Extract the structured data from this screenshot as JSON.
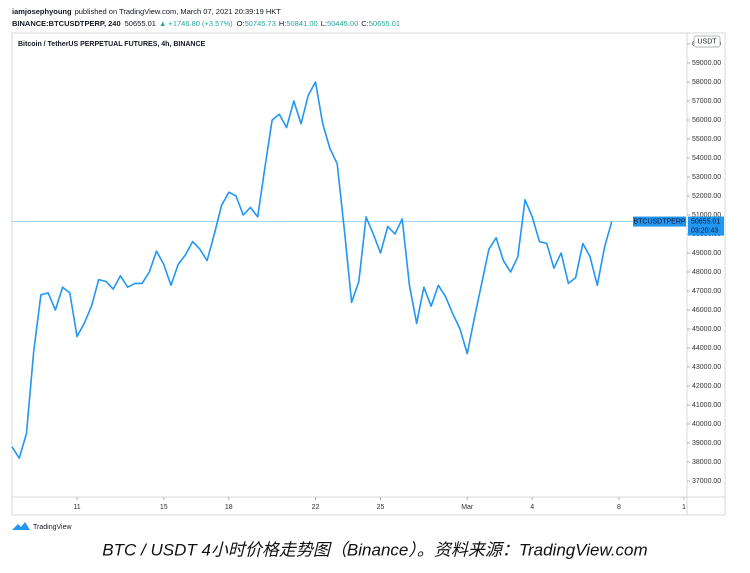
{
  "header": {
    "author": "iamjosephyoung",
    "published": "published on TradingView.com, March 07, 2021 20:39:19 HKT",
    "symbol": "BINANCE:BTCUSDTPERP, 240",
    "price": "50655.01",
    "change": "▲ +1746.80 (+3.57%)",
    "ohlc": [
      {
        "key": "O:",
        "value": "50745.73"
      },
      {
        "key": "H:",
        "value": "50841.00"
      },
      {
        "key": "L:",
        "value": "50445.00"
      },
      {
        "key": "C:",
        "value": "50655.01"
      }
    ]
  },
  "chart_data": {
    "type": "line",
    "title": "Bitcoin / TetherUS PERPETUAL FUTURES, 4h, BINANCE",
    "y_label": "USDT",
    "categories": [
      null,
      null,
      null,
      null,
      null,
      null,
      null,
      null,
      null,
      "11",
      null,
      null,
      null,
      null,
      null,
      null,
      null,
      null,
      null,
      null,
      null,
      "15",
      null,
      null,
      null,
      null,
      null,
      null,
      null,
      null,
      "18",
      null,
      null,
      null,
      null,
      null,
      null,
      null,
      null,
      null,
      null,
      null,
      "22",
      null,
      null,
      null,
      null,
      null,
      null,
      null,
      null,
      "25",
      null,
      null,
      null,
      null,
      null,
      null,
      null,
      null,
      null,
      null,
      null,
      "Mar",
      null,
      null,
      null,
      null,
      null,
      null,
      null,
      null,
      "4",
      null,
      null,
      null,
      null,
      null,
      null,
      null,
      null,
      null,
      null,
      null,
      "8",
      null,
      null,
      null,
      null,
      null,
      null,
      null,
      null,
      "1"
    ],
    "series": [
      {
        "name": "BTCUSDTPERP",
        "color": "#2196f3",
        "values": [
          38800,
          38200,
          39500,
          43800,
          46800,
          46900,
          46000,
          47200,
          46900,
          44600,
          45300,
          46200,
          47600,
          47500,
          47100,
          47800,
          47200,
          47400,
          47400,
          48000,
          49100,
          48400,
          47300,
          48400,
          48900,
          49600,
          49200,
          48600,
          50000,
          51500,
          52200,
          52000,
          51000,
          51400,
          50900,
          53500,
          56000,
          56300,
          55600,
          57000,
          55800,
          57300,
          58000,
          55800,
          54500,
          53700,
          50200,
          46400,
          47500,
          50900,
          50000,
          49000,
          50400,
          50000,
          50800,
          47300,
          45300,
          47200,
          46200,
          47300,
          46700,
          45800,
          45000,
          43700,
          45600,
          47400,
          49200,
          49800,
          48600,
          48000,
          48800,
          51800,
          50900,
          49600,
          49500,
          48200,
          49000,
          47400,
          47700,
          49500,
          48800,
          47300,
          49300,
          50655.01,
          null,
          null,
          null,
          null,
          null,
          null,
          null,
          null,
          null,
          null
        ]
      }
    ],
    "ylim": [
      36158,
      60579
    ],
    "yticks": [
      {
        "value": 37000,
        "label": "37000.00"
      },
      {
        "value": 38000,
        "label": "38000.00"
      },
      {
        "value": 39000,
        "label": "39000.00"
      },
      {
        "value": 40000,
        "label": "40000.00"
      },
      {
        "value": 41000,
        "label": "41000.00"
      },
      {
        "value": 42000,
        "label": "42000.00"
      },
      {
        "value": 43000,
        "label": "43000.00"
      },
      {
        "value": 44000,
        "label": "44000.00"
      },
      {
        "value": 45000,
        "label": "45000.00"
      },
      {
        "value": 46000,
        "label": "46000.00"
      },
      {
        "value": 47000,
        "label": "47000.00"
      },
      {
        "value": 48000,
        "label": "48000.00"
      },
      {
        "value": 49000,
        "label": "49000.00"
      },
      {
        "value": 50000,
        "label": "50000.00"
      },
      {
        "value": 51000,
        "label": "51000.00"
      },
      {
        "value": 52000,
        "label": "52000.00"
      },
      {
        "value": 53000,
        "label": "53000.00"
      },
      {
        "value": 54000,
        "label": "54000.00"
      },
      {
        "value": 55000,
        "label": "55000.00"
      },
      {
        "value": 56000,
        "label": "56000.00"
      },
      {
        "value": 57000,
        "label": "57000.00"
      },
      {
        "value": 58000,
        "label": "58000.00"
      },
      {
        "value": 59000,
        "label": "59000.00"
      },
      {
        "value": 60000,
        "label": "60000.00"
      }
    ],
    "grid": false,
    "countdown": "03:20:43"
  },
  "footer": {
    "brand": "TradingView",
    "caption": "BTC / USDT 4小时价格走势图（Binance）。资料来源：TradingView.com"
  }
}
